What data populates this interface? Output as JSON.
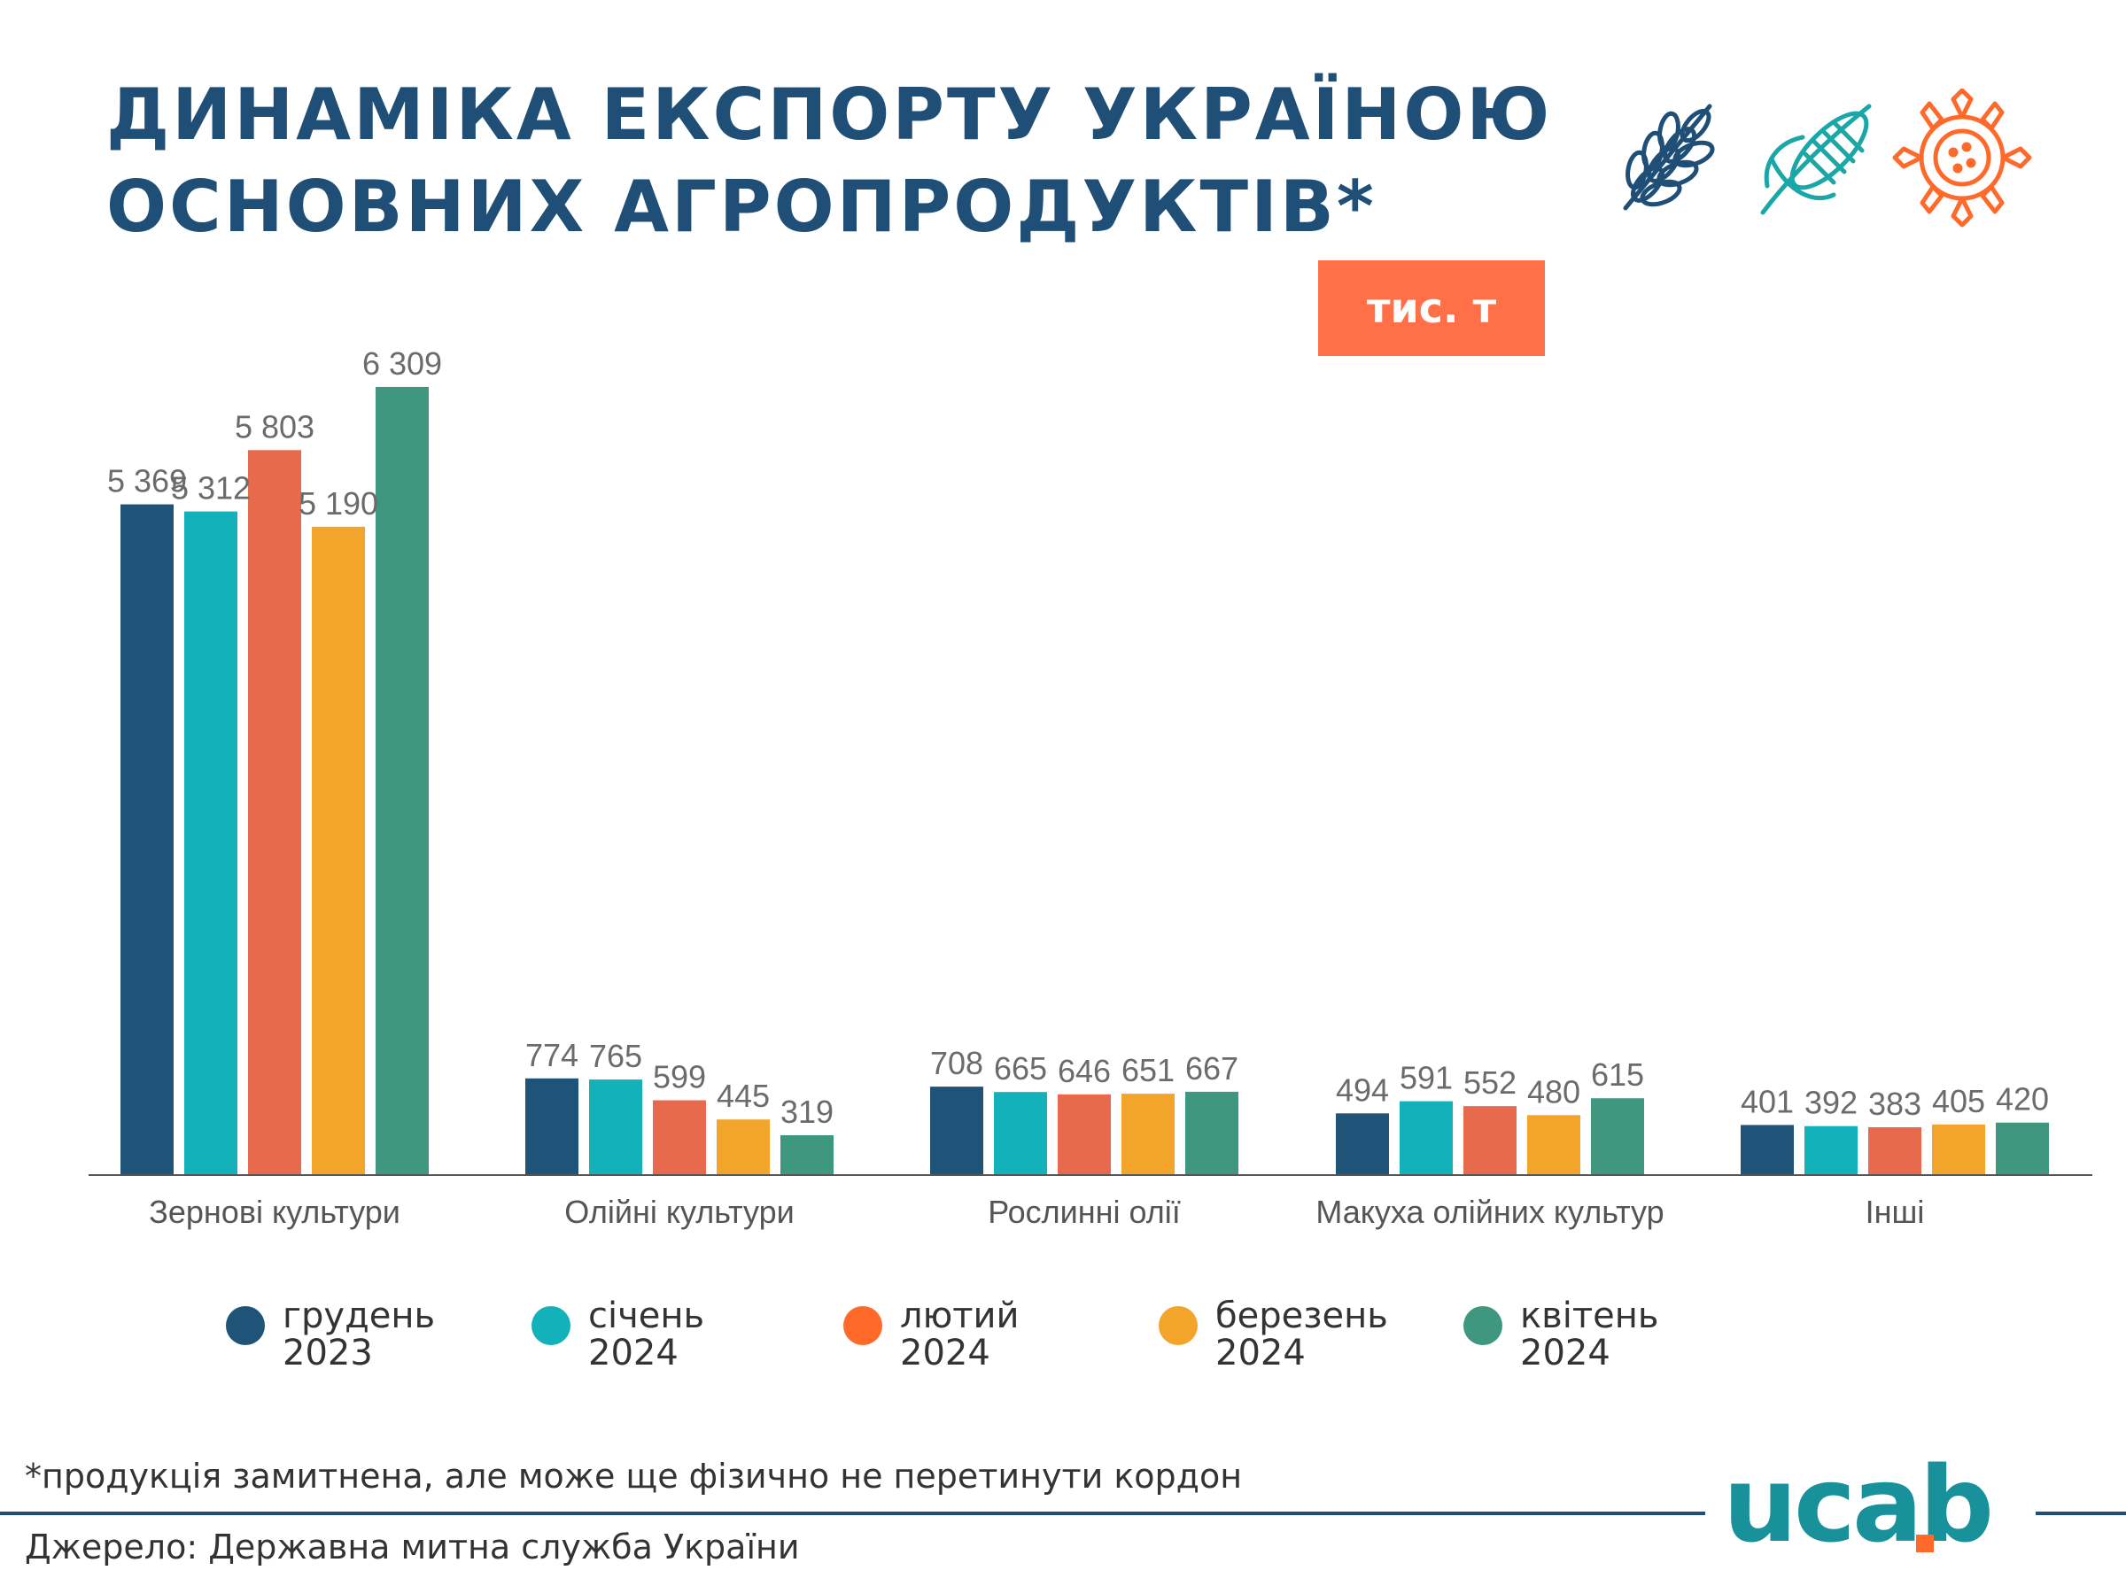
{
  "header": {
    "title_line1": "Динаміка експорту Україною",
    "title_line2": "основних агропродуктів*",
    "unit_badge": "тис. т"
  },
  "icons": [
    "wheat-icon",
    "corn-icon",
    "sunflower-icon"
  ],
  "colors": {
    "title": "#1f4e76",
    "badge": "#ff7049",
    "series": [
      "#1f5378",
      "#13b2bb",
      "#e86a4c",
      "#f3a52b",
      "#3f9780"
    ],
    "logo_blue": "#19919a",
    "logo_orange": "#ff6a2b"
  },
  "chart_data": {
    "type": "bar",
    "title": "Динаміка експорту Україною основних агропродуктів*",
    "unit": "тис. т",
    "categories": [
      "Зернові культури",
      "Олійні культури",
      "Рослинні олії",
      "Макуха олійних культур",
      "Інші"
    ],
    "series": [
      {
        "name": "грудень 2023",
        "values": [
          5369,
          774,
          708,
          494,
          401
        ],
        "labels": [
          "5 369",
          "774",
          "708",
          "494",
          "401"
        ]
      },
      {
        "name": "січень 2024",
        "values": [
          5312,
          765,
          665,
          591,
          392
        ],
        "labels": [
          "5 312",
          "765",
          "665",
          "591",
          "392"
        ]
      },
      {
        "name": "лютий 2024",
        "values": [
          5803,
          599,
          646,
          552,
          383
        ],
        "labels": [
          "5 803",
          "599",
          "646",
          "552",
          "383"
        ]
      },
      {
        "name": "березень 2024",
        "values": [
          5190,
          445,
          651,
          480,
          405
        ],
        "labels": [
          "5 190",
          "445",
          "651",
          "480",
          "405"
        ]
      },
      {
        "name": "квітень 2024",
        "values": [
          6309,
          319,
          667,
          615,
          420
        ],
        "labels": [
          "6 309",
          "319",
          "667",
          "615",
          "420"
        ]
      }
    ],
    "ylim": [
      0,
      6500
    ],
    "grid": false,
    "legend_position": "bottom"
  },
  "legend": [
    {
      "line1": "грудень",
      "line2": "2023"
    },
    {
      "line1": "січень",
      "line2": "2024"
    },
    {
      "line1": "лютий",
      "line2": "2024"
    },
    {
      "line1": "березень",
      "line2": "2024"
    },
    {
      "line1": "квітень",
      "line2": "2024"
    }
  ],
  "legend_dot_colors": [
    "#1f5378",
    "#13b2bb",
    "#ff6a2b",
    "#f3a52b",
    "#3f9780"
  ],
  "footer": {
    "note": "*продукція замитнена, але може ще фізично не перетинути кордон",
    "source": "Джерело: Державна митна служба України",
    "logo_text": "ucab"
  }
}
